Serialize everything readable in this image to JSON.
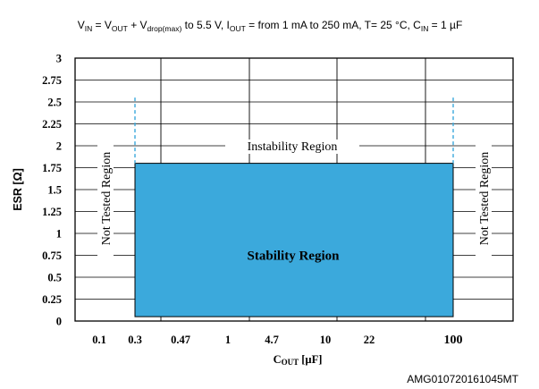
{
  "chart_data": {
    "type": "area",
    "conditions": {
      "vin": "V",
      "vin_sub": "IN",
      "eq1": " = V",
      "vout_sub": "OUT",
      "plus": " + V",
      "vdrop_sub": "drop(max)",
      "mid": " to 5.5 V, I",
      "iout_sub": "OUT",
      "tail1": " = from 1 mA to 250 mA, T= 25 °C, C",
      "cin_sub": "IN",
      "tail2": " = 1 µF"
    },
    "ylabel": "ESR [Ω]",
    "xlabel_main": "C",
    "xlabel_sub": "OUT",
    "xlabel_unit": " [µF]",
    "y_ticks": [
      "0",
      "0.25",
      "0.5",
      "0.75",
      "1",
      "1.25",
      "1.5",
      "1.75",
      "2",
      "2.25",
      "2.5",
      "2.75",
      "3"
    ],
    "ylim": [
      0,
      3
    ],
    "x_ticks": [
      "0.1",
      "0.3",
      "0.47",
      "1",
      "4.7",
      "10",
      "22",
      "100"
    ],
    "vertical_gridlines_at": [
      "0.1",
      "1",
      "10",
      "100"
    ],
    "stability_region": {
      "label": "Stability Region",
      "cout_min": "0.3",
      "cout_max": "100",
      "esr_min": 0.05,
      "esr_max": 1.8,
      "color": "#3ba9dc"
    },
    "instability_label": "Instability Region",
    "not_tested_left": "Not Tested Region",
    "not_tested_right": "Not Tested Region",
    "boundary_esr_top": 2.55,
    "boundary_color": "#3ba9dc"
  },
  "footer_code": "AMG010720161045MT"
}
